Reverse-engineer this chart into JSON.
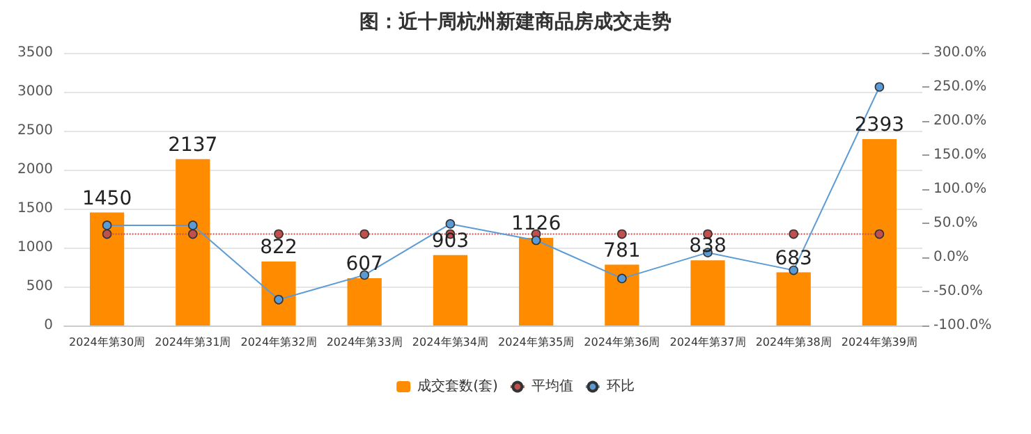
{
  "chart_data": {
    "type": "bar",
    "title": "图：近十周杭州新建商品房成交走势",
    "categories": [
      "2024年第30周",
      "2024年第31周",
      "2024年第32周",
      "2024年第33周",
      "2024年第34周",
      "2024年第35周",
      "2024年第36周",
      "2024年第37周",
      "2024年第38周",
      "2024年第39周"
    ],
    "series": [
      {
        "name": "成交套数(套)",
        "color": "#ff8c00",
        "values": [
          1450,
          2137,
          822,
          607,
          903,
          1126,
          781,
          838,
          683,
          2393
        ],
        "data_labels": true
      },
      {
        "name": "平均值",
        "type": "line",
        "color": "#c0504d",
        "values": [
          1174,
          1174,
          1174,
          1174,
          1174,
          1174,
          1174,
          1174,
          1174,
          1174
        ],
        "line_style": "dotted",
        "marker": "circle"
      },
      {
        "name": "环比",
        "type": "line",
        "axis": "y2",
        "color": "#5b9bd5",
        "values": [
          47,
          47,
          -62,
          -26,
          49,
          25,
          -31,
          7,
          -19,
          250
        ],
        "line_style": "solid",
        "marker": "circle"
      }
    ],
    "ylim": [
      0,
      3500
    ],
    "yticks": [
      0,
      500,
      1000,
      1500,
      2000,
      2500,
      3000,
      3500
    ],
    "y2lim": [
      -100,
      300
    ],
    "y2ticks": [
      {
        "value": -100,
        "label": "-100.0%"
      },
      {
        "value": -50,
        "label": "-50.0%"
      },
      {
        "value": 0,
        "label": "0.0%"
      },
      {
        "value": 50,
        "label": "50.0%"
      },
      {
        "value": 100,
        "label": "100.0%"
      },
      {
        "value": 150,
        "label": "150.0%"
      },
      {
        "value": 200,
        "label": "200.0%"
      },
      {
        "value": 250,
        "label": "250.0%"
      },
      {
        "value": 300,
        "label": "300.0%"
      }
    ],
    "grid": "y",
    "legend": "bottom"
  }
}
